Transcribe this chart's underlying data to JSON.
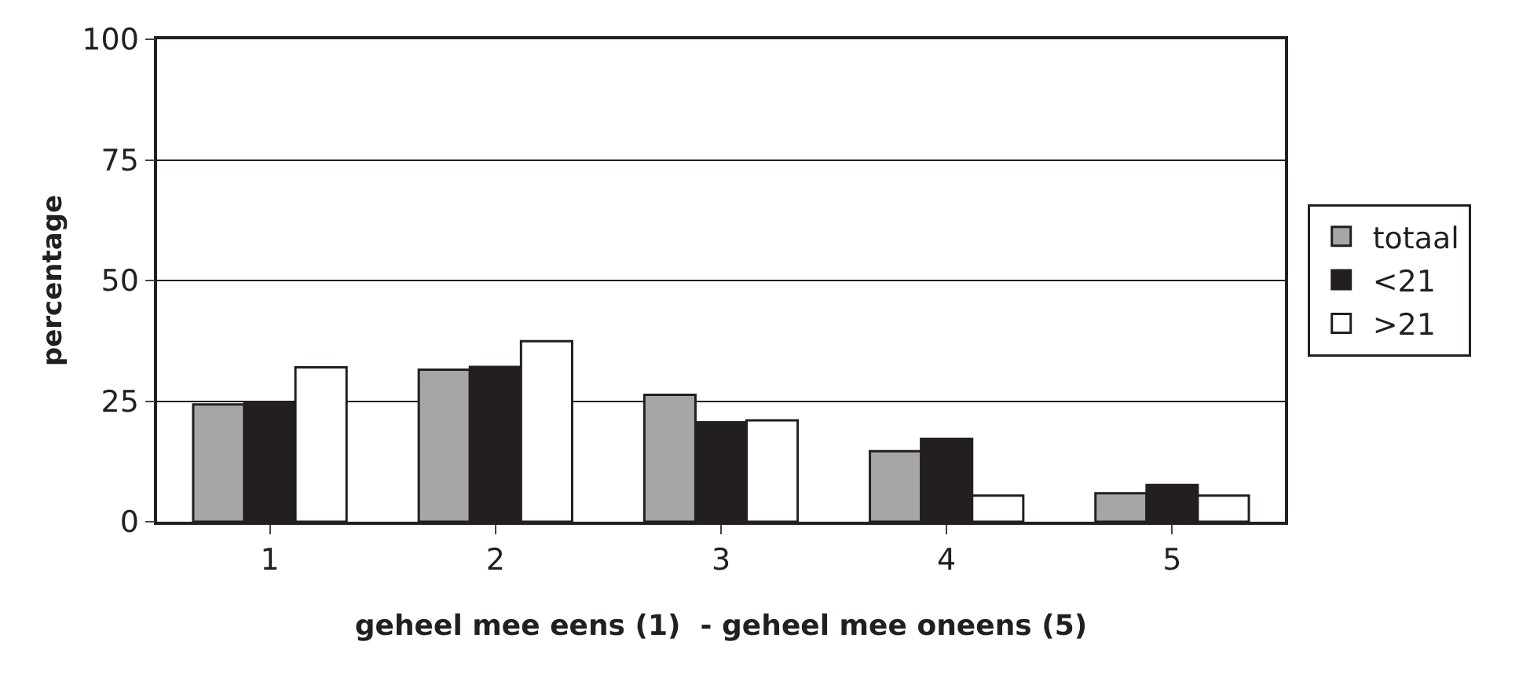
{
  "chart_data": {
    "type": "bar",
    "xlabel": "geheel mee eens (1)  - geheel mee oneens (5)",
    "ylabel": "percentage",
    "categories": [
      "1",
      "2",
      "3",
      "4",
      "5"
    ],
    "series": [
      {
        "name": "totaal",
        "color": "#a6a6a8",
        "values": [
          24.3,
          31.5,
          26.3,
          14.6,
          5.9
        ]
      },
      {
        "name": "<21",
        "color": "#231f20",
        "values": [
          24.5,
          32.1,
          20.6,
          17.2,
          7.6
        ]
      },
      {
        "name": ">21",
        "color": "#ffffff",
        "values": [
          32.0,
          37.4,
          21.0,
          5.4,
          5.4
        ]
      }
    ],
    "ylim": [
      0,
      100
    ],
    "yticks": [
      0,
      25,
      50,
      75,
      100
    ],
    "grid": "y",
    "legend": "right"
  }
}
